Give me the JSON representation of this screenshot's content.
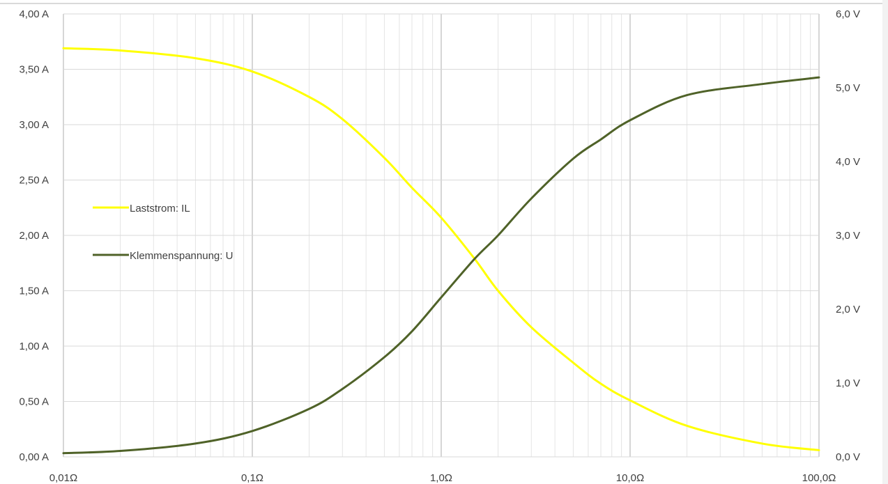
{
  "chart_data": {
    "type": "line",
    "x_scale": "log",
    "xlim": [
      0.01,
      100
    ],
    "y_left_lim": [
      0,
      4
    ],
    "y_right_lim": [
      0,
      6
    ],
    "x_tick_values": [
      0.01,
      0.1,
      1,
      10,
      100
    ],
    "x_tick_labels": [
      "0,01Ω",
      "0,1Ω",
      "1,0Ω",
      "10,0Ω",
      "100,0Ω"
    ],
    "y_left_tick_values": [
      0,
      0.5,
      1,
      1.5,
      2,
      2.5,
      3,
      3.5,
      4
    ],
    "y_left_tick_labels": [
      "0,00 A",
      "0,50 A",
      "1,00 A",
      "1,50 A",
      "2,00 A",
      "2,50 A",
      "3,00 A",
      "3,50 A",
      "4,00 A"
    ],
    "y_right_tick_values": [
      0,
      1,
      2,
      3,
      4,
      5,
      6
    ],
    "y_right_tick_labels": [
      "0,0 V",
      "1,0 V",
      "2,0 V",
      "3,0 V",
      "4,0 V",
      "5,0 V",
      "6,0 V"
    ],
    "grid": true,
    "legend_position": "left",
    "series": [
      {
        "name": "Laststrom: IL",
        "axis": "left",
        "color": "#ffff00",
        "x": [
          0.01,
          0.02,
          0.05,
          0.1,
          0.2,
          0.3,
          0.5,
          0.7,
          1.0,
          1.5,
          2.0,
          3.0,
          5.0,
          7.0,
          10.0,
          20.0,
          50.0,
          100.0
        ],
        "y": [
          3.69,
          3.67,
          3.6,
          3.48,
          3.25,
          3.05,
          2.7,
          2.43,
          2.16,
          1.79,
          1.5,
          1.17,
          0.85,
          0.66,
          0.51,
          0.28,
          0.12,
          0.06
        ]
      },
      {
        "name": "Klemmenspannung: U",
        "axis": "right",
        "color": "#4f6228",
        "x": [
          0.01,
          0.02,
          0.05,
          0.1,
          0.2,
          0.3,
          0.5,
          0.7,
          1.0,
          1.5,
          2.0,
          3.0,
          5.0,
          7.0,
          10.0,
          20.0,
          50.0,
          100.0
        ],
        "y": [
          0.05,
          0.08,
          0.18,
          0.35,
          0.65,
          0.92,
          1.35,
          1.7,
          2.16,
          2.68,
          3.0,
          3.5,
          4.04,
          4.3,
          4.56,
          4.9,
          5.05,
          5.14
        ]
      }
    ]
  }
}
